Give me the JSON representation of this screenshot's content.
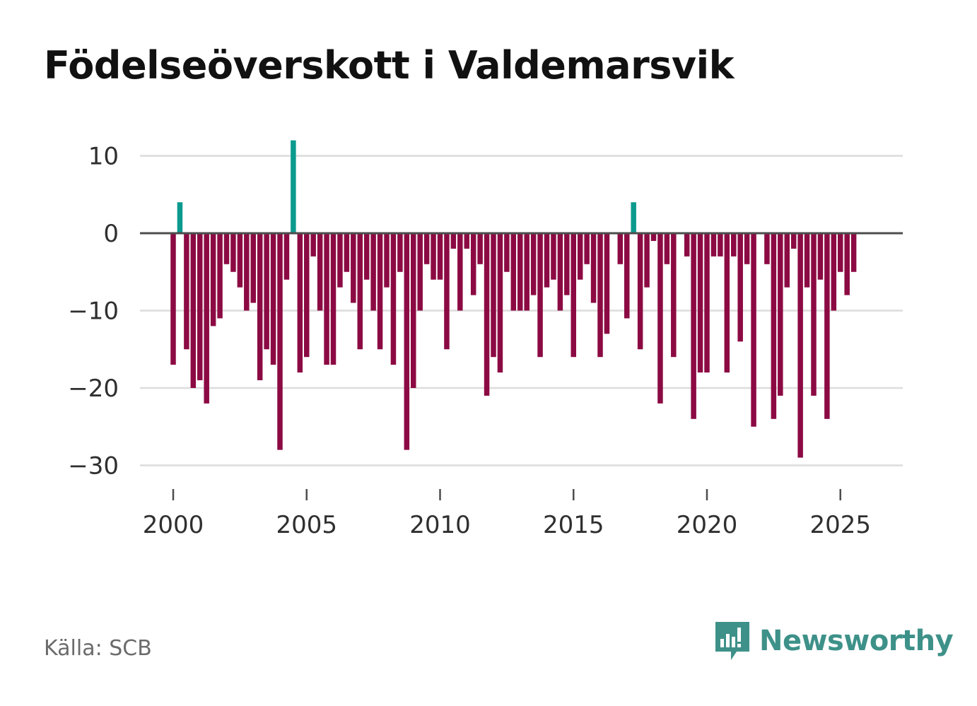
{
  "header": {
    "title": "Födelseöverskott i Valdemarsvik"
  },
  "footer": {
    "source": "Källa: SCB",
    "brand": "Newsworthy",
    "brand_icon": "newsworthy-logo-icon"
  },
  "colors": {
    "positive": "#0c9a8e",
    "negative": "#8c0a43",
    "baseline": "#4d4d4d",
    "grid": "#dcdcdc",
    "text": "#2f2f2f",
    "brand": "#3e9189"
  },
  "chart_data": {
    "type": "bar",
    "title": "Födelseöverskott i Valdemarsvik",
    "xlabel": "",
    "ylabel": "",
    "x_start": 2000.0,
    "x_step": 0.25,
    "values": [
      -17,
      4,
      -15,
      -20,
      -19,
      -22,
      -12,
      -11,
      -4,
      -5,
      -7,
      -10,
      -9,
      -19,
      -15,
      -17,
      -28,
      -6,
      12,
      -18,
      -16,
      -3,
      -10,
      -17,
      -17,
      -7,
      -5,
      -9,
      -15,
      -6,
      -10,
      -15,
      -7,
      -17,
      -5,
      -28,
      -20,
      -10,
      -4,
      -6,
      -6,
      -15,
      -2,
      -10,
      -2,
      -8,
      -4,
      -21,
      -16,
      -18,
      -5,
      -10,
      -10,
      -10,
      -8,
      -16,
      -7,
      -6,
      -10,
      -8,
      -16,
      -6,
      -4,
      -9,
      -16,
      -13,
      0,
      -4,
      -11,
      4,
      -15,
      -7,
      -1,
      -22,
      -4,
      -16,
      0,
      -3,
      -24,
      -18,
      -18,
      -3,
      -3,
      -18,
      -3,
      -14,
      -4,
      -25,
      0,
      -4,
      -24,
      -21,
      -7,
      -2,
      -29,
      -7,
      -21,
      -6,
      -24,
      -10,
      -5,
      -8,
      -5
    ],
    "xlim": [
      1999.0,
      2027.35
    ],
    "ylim": [
      -34,
      14
    ],
    "y_ticks": [
      10,
      0,
      -10,
      -20,
      -30
    ],
    "y_tick_labels": [
      "10",
      "0",
      "−10",
      "−20",
      "−30"
    ],
    "x_ticks": [
      2000,
      2005,
      2010,
      2015,
      2020,
      2025
    ],
    "x_tick_labels": [
      "2000",
      "2005",
      "2010",
      "2015",
      "2020",
      "2025"
    ],
    "grid": true,
    "legend": "none"
  }
}
